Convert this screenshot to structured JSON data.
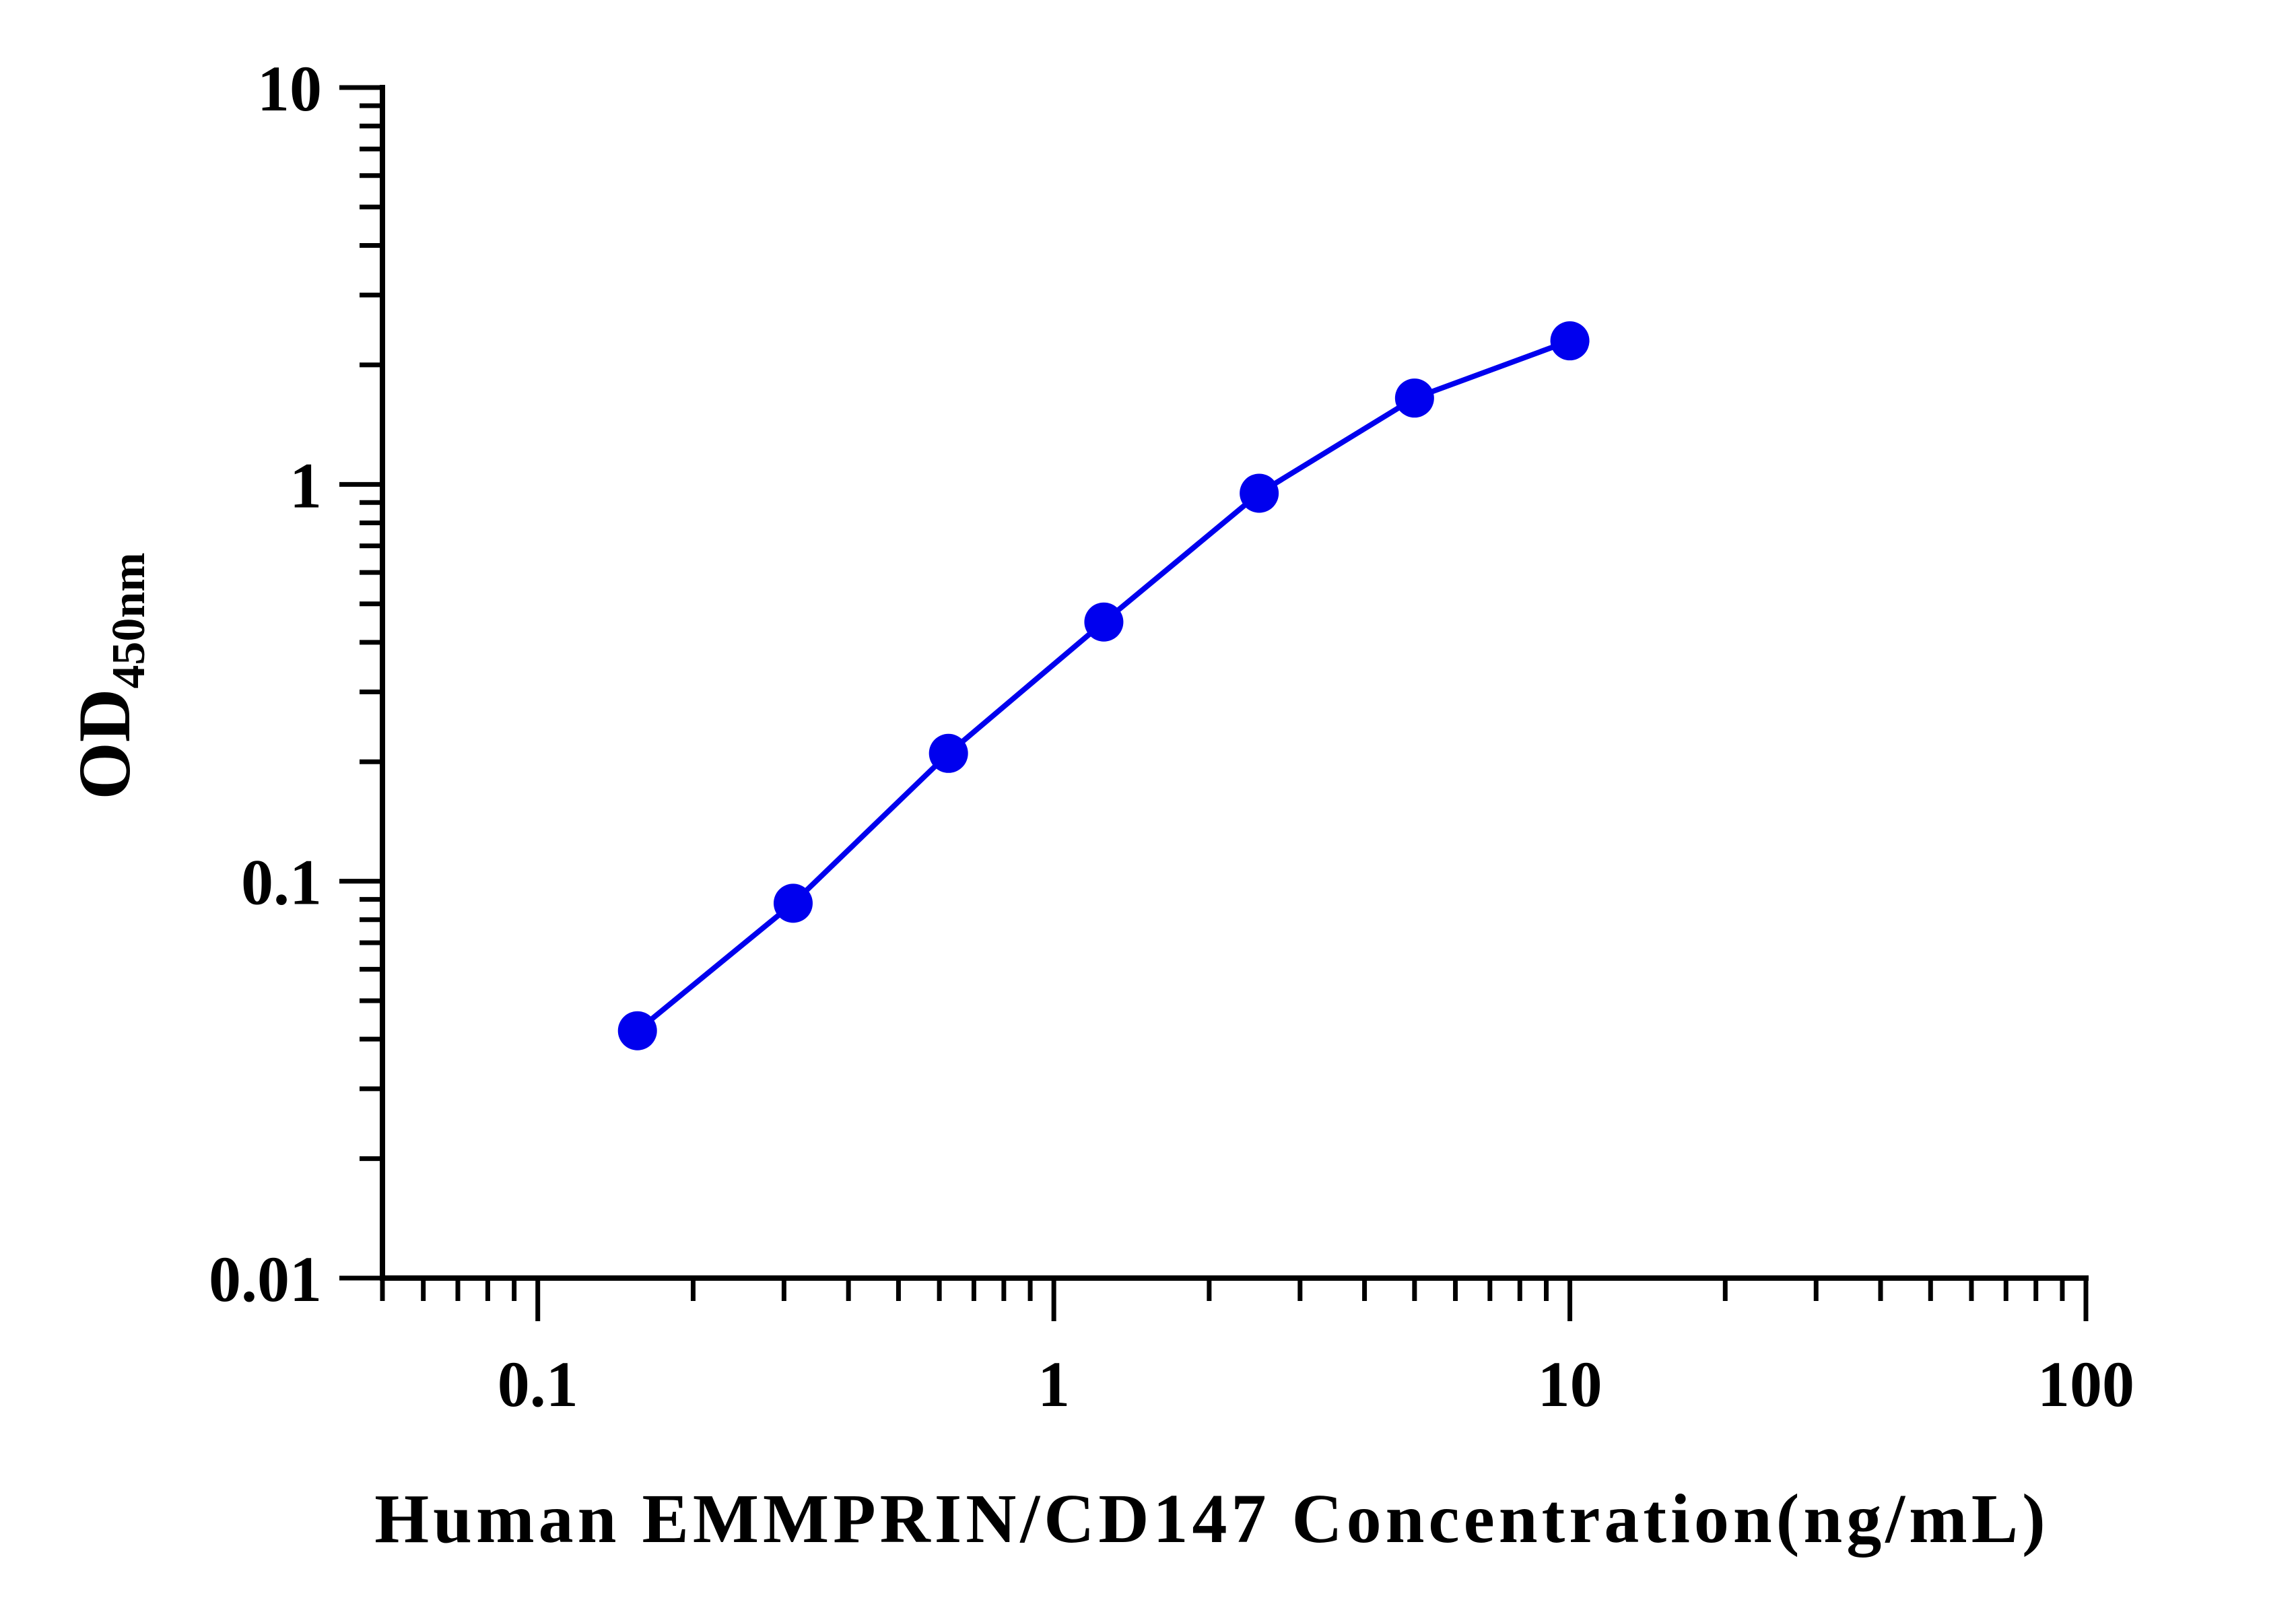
{
  "chart_data": {
    "type": "line",
    "title": "",
    "xlabel": "Human EMMPRIN/CD147 Concentration(ng/mL)",
    "ylabel": {
      "main": "OD",
      "subscript": "450nm"
    },
    "x_scale": "log",
    "y_scale": "log",
    "xlim": [
      0.05,
      100
    ],
    "ylim": [
      0.01,
      10
    ],
    "x_ticks": [
      "0.1",
      "1",
      "10",
      "100"
    ],
    "y_ticks": [
      "0.01",
      "0.1",
      "1",
      "10"
    ],
    "grid": false,
    "legend": "none",
    "series": [
      {
        "color": "#0000ee",
        "x": [
          0.156,
          0.3125,
          0.625,
          1.25,
          2.5,
          5,
          10
        ],
        "y": [
          0.042,
          0.088,
          0.21,
          0.45,
          0.95,
          1.65,
          2.3
        ]
      }
    ]
  }
}
